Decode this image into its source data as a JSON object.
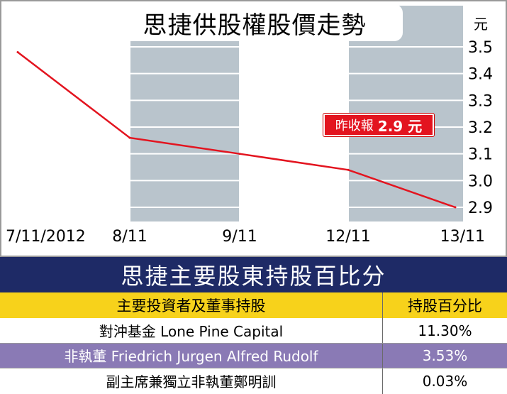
{
  "chart_data": {
    "type": "line",
    "title": "思捷供股權股價走勢",
    "unit": "元",
    "categories": [
      "7/11/2012",
      "8/11",
      "9/11",
      "12/11",
      "13/11"
    ],
    "values": [
      3.48,
      3.16,
      3.1,
      3.04,
      2.9
    ],
    "y_ticks": [
      "3.5",
      "3.4",
      "3.3",
      "3.2",
      "3.1",
      "3.0",
      "2.9"
    ],
    "ylim": [
      2.9,
      3.5
    ],
    "grid": true,
    "axis_position": "right",
    "line_color": "#e3141f",
    "shaded_band_color": "#b9c4cc",
    "callout": {
      "label": "昨收報",
      "value": "2.9 元"
    }
  },
  "table": {
    "title": "思捷主要股東持股百比分",
    "headers": [
      "主要投資者及董事持股",
      "持股百分比"
    ],
    "rows": [
      {
        "holder": "對沖基金 Lone Pine Capital",
        "pct": "11.30%"
      },
      {
        "holder": "非執董 Friedrich Jurgen Alfred Rudolf",
        "pct": "3.53%"
      },
      {
        "holder": "副主席兼獨立非執董鄭明訓",
        "pct": "0.03%"
      }
    ],
    "header_color": "#f7d21b",
    "title_bar_color": "#1e2a66",
    "highlight_row_color": "#8a7ab5"
  }
}
